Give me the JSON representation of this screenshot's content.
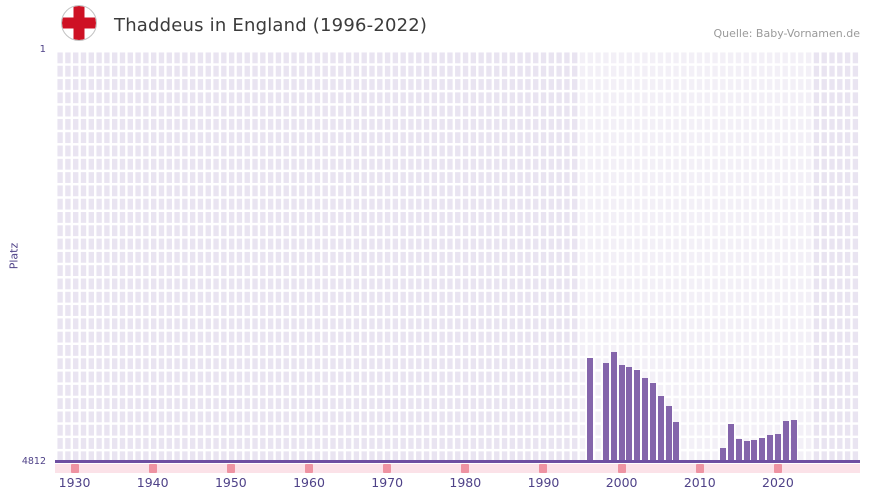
{
  "header": {
    "title": "Thaddeus in England (1996-2022)",
    "source": "Quelle: Baby-Vornamen.de",
    "flag_icon": "england-flag-icon"
  },
  "chart_data": {
    "type": "bar",
    "title": "Thaddeus in England (1996-2022)",
    "xlabel": "",
    "ylabel": "Platz",
    "y_axis": {
      "top_label": "1",
      "bottom_label": "4812"
    },
    "y_inverted": true,
    "xlim": [
      1927.5,
      2030.5
    ],
    "ylim": [
      1,
      4812
    ],
    "xticks": [
      1930,
      1940,
      1950,
      1960,
      1970,
      1980,
      1990,
      2000,
      2010,
      2020
    ],
    "highlight_range": [
      1994.5,
      2024.5
    ],
    "grid": true,
    "legend": false,
    "x": [
      1996,
      1997,
      1998,
      1999,
      2000,
      2001,
      2002,
      2003,
      2004,
      2005,
      2006,
      2007,
      2008,
      2009,
      2010,
      2011,
      2012,
      2013,
      2014,
      2015,
      2016,
      2017,
      2018,
      2019,
      2020,
      2021,
      2022
    ],
    "values": [
      3600,
      null,
      3660,
      3530,
      3680,
      3700,
      3740,
      3830,
      3890,
      4040,
      4160,
      4350,
      null,
      null,
      null,
      null,
      null,
      4650,
      4370,
      4540,
      4570,
      4560,
      4530,
      4500,
      4480,
      4330,
      4320
    ],
    "colors": {
      "bar": "#8465ab",
      "axis_line": "#6e4fa1",
      "tick_label": "#4f4288",
      "plot_bg": "#e9e4f1",
      "grid_line": "#ffffff",
      "highlight": "rgba(255,255,255,0.45)",
      "band_bg": "#fbe2e8",
      "band_tick": "#ee93a2",
      "flag_cross": "#ce1124",
      "title_text": "#3b3b3b",
      "source_text": "#9a9a9a"
    }
  }
}
